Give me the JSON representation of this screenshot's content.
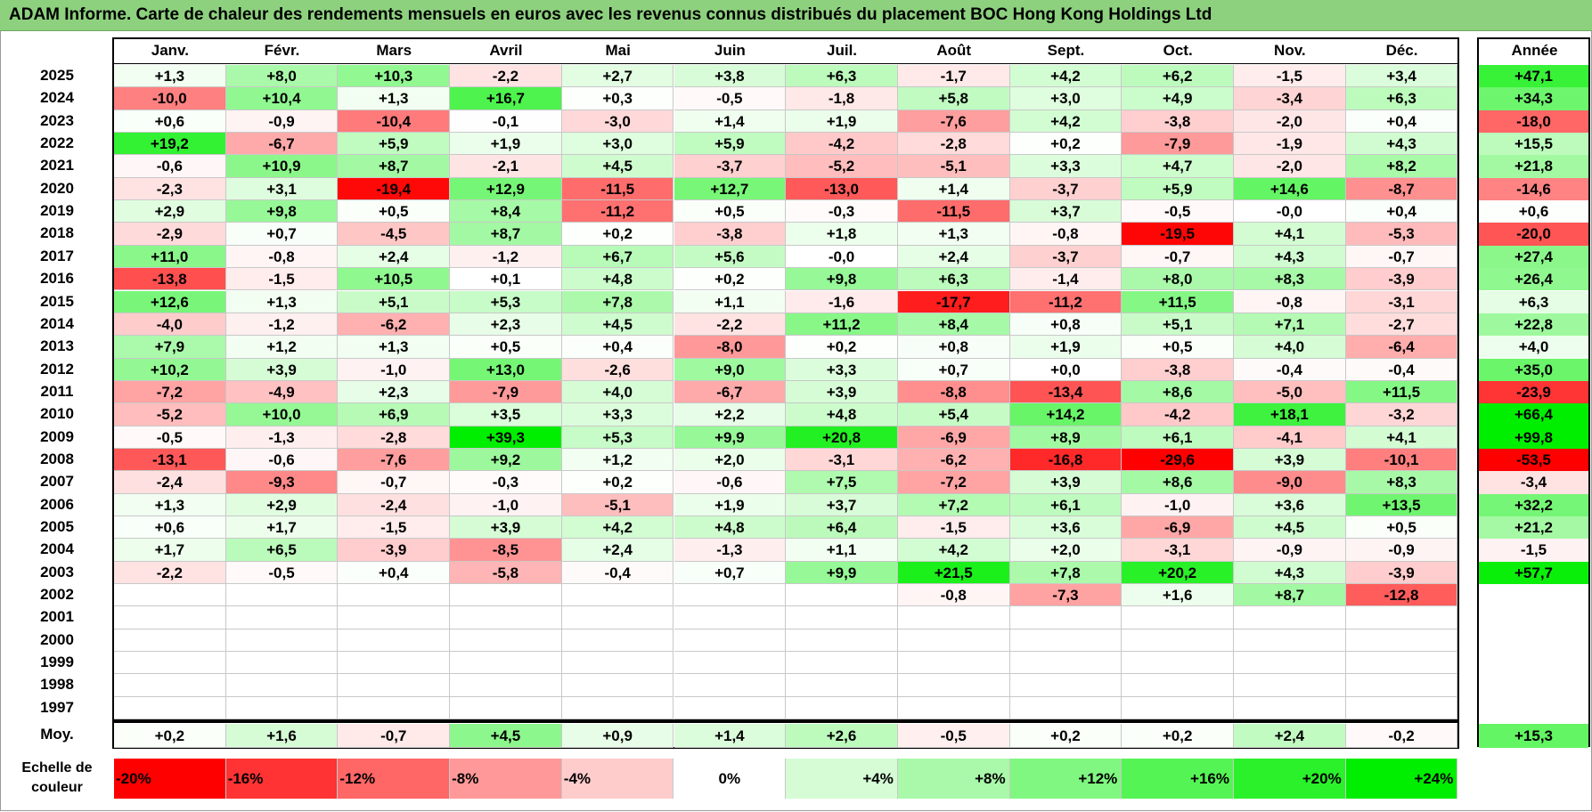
{
  "title": "ADAM Informe. Carte de chaleur des rendements mensuels en euros avec les revenus connus distribués du placement BOC Hong Kong Holdings Ltd",
  "colors": {
    "title_bar": "#8dd17e",
    "negative_max": "#ff0000",
    "positive_max": "#00ee00",
    "neutral": "#ffffff"
  },
  "chart_data": {
    "type": "heatmap",
    "title": "ADAM Informe. Carte de chaleur des rendements mensuels en euros avec les revenus connus distribués du placement BOC Hong Kong Holdings Ltd",
    "months": [
      "Janv.",
      "Févr.",
      "Mars",
      "Avril",
      "Mai",
      "Juin",
      "Juil.",
      "Août",
      "Sept.",
      "Oct.",
      "Nov.",
      "Déc."
    ],
    "year_header": "Année",
    "rows": [
      {
        "year": "2025",
        "values": [
          "+1,3",
          "+8,0",
          "+10,3",
          "-2,2",
          "+2,7",
          "+3,8",
          "+6,3",
          "-1,7",
          "+4,2",
          "+6,2",
          "-1,5",
          "+3,4"
        ],
        "annual": "+47,1"
      },
      {
        "year": "2024",
        "values": [
          "-10,0",
          "+10,4",
          "+1,3",
          "+16,7",
          "+0,3",
          "-0,5",
          "-1,8",
          "+5,8",
          "+3,0",
          "+4,9",
          "-3,4",
          "+6,3"
        ],
        "annual": "+34,3"
      },
      {
        "year": "2023",
        "values": [
          "+0,6",
          "-0,9",
          "-10,4",
          "-0,1",
          "-3,0",
          "+1,4",
          "+1,9",
          "-7,6",
          "+4,2",
          "-3,8",
          "-2,0",
          "+0,4"
        ],
        "annual": "-18,0"
      },
      {
        "year": "2022",
        "values": [
          "+19,2",
          "-6,7",
          "+5,9",
          "+1,9",
          "+3,0",
          "+5,9",
          "-4,2",
          "-2,8",
          "+0,2",
          "-7,9",
          "-1,9",
          "+4,3"
        ],
        "annual": "+15,5"
      },
      {
        "year": "2021",
        "values": [
          "-0,6",
          "+10,9",
          "+8,7",
          "-2,1",
          "+4,5",
          "-3,7",
          "-5,2",
          "-5,1",
          "+3,3",
          "+4,7",
          "-2,0",
          "+8,2"
        ],
        "annual": "+21,8"
      },
      {
        "year": "2020",
        "values": [
          "-2,3",
          "+3,1",
          "-19,4",
          "+12,9",
          "-11,5",
          "+12,7",
          "-13,0",
          "+1,4",
          "-3,7",
          "+5,9",
          "+14,6",
          "-8,7"
        ],
        "annual": "-14,6"
      },
      {
        "year": "2019",
        "values": [
          "+2,9",
          "+9,8",
          "+0,5",
          "+8,4",
          "-11,2",
          "+0,5",
          "-0,3",
          "-11,5",
          "+3,7",
          "-0,5",
          "-0,0",
          "+0,4"
        ],
        "annual": "+0,6"
      },
      {
        "year": "2018",
        "values": [
          "-2,9",
          "+0,7",
          "-4,5",
          "+8,7",
          "+0,2",
          "-3,8",
          "+1,8",
          "+1,3",
          "-0,8",
          "-19,5",
          "+4,1",
          "-5,3"
        ],
        "annual": "-20,0"
      },
      {
        "year": "2017",
        "values": [
          "+11,0",
          "-0,8",
          "+2,4",
          "-1,2",
          "+6,7",
          "+5,6",
          "-0,0",
          "+2,4",
          "-3,7",
          "-0,7",
          "+4,3",
          "-0,7"
        ],
        "annual": "+27,4"
      },
      {
        "year": "2016",
        "values": [
          "-13,8",
          "-1,5",
          "+10,5",
          "+0,1",
          "+4,8",
          "+0,2",
          "+9,8",
          "+6,3",
          "-1,4",
          "+8,0",
          "+8,3",
          "-3,9"
        ],
        "annual": "+26,4"
      },
      {
        "year": "2015",
        "values": [
          "+12,6",
          "+1,3",
          "+5,1",
          "+5,3",
          "+7,8",
          "+1,1",
          "-1,6",
          "-17,7",
          "-11,2",
          "+11,5",
          "-0,8",
          "-3,1"
        ],
        "annual": "+6,3"
      },
      {
        "year": "2014",
        "values": [
          "-4,0",
          "-1,2",
          "-6,2",
          "+2,3",
          "+4,5",
          "-2,2",
          "+11,2",
          "+8,4",
          "+0,8",
          "+5,1",
          "+7,1",
          "-2,7"
        ],
        "annual": "+22,8"
      },
      {
        "year": "2013",
        "values": [
          "+7,9",
          "+1,2",
          "+1,3",
          "+0,5",
          "+0,4",
          "-8,0",
          "+0,2",
          "+0,8",
          "+1,9",
          "+0,5",
          "+4,0",
          "-6,4"
        ],
        "annual": "+4,0"
      },
      {
        "year": "2012",
        "values": [
          "+10,2",
          "+3,9",
          "-1,0",
          "+13,0",
          "-2,6",
          "+9,0",
          "+3,3",
          "+0,7",
          "+0,0",
          "-3,8",
          "-0,4",
          "-0,4"
        ],
        "annual": "+35,0"
      },
      {
        "year": "2011",
        "values": [
          "-7,2",
          "-4,9",
          "+2,3",
          "-7,9",
          "+4,0",
          "-6,7",
          "+3,9",
          "-8,8",
          "-13,4",
          "+8,6",
          "-5,0",
          "+11,5"
        ],
        "annual": "-23,9"
      },
      {
        "year": "2010",
        "values": [
          "-5,2",
          "+10,0",
          "+6,9",
          "+3,5",
          "+3,3",
          "+2,2",
          "+4,8",
          "+5,4",
          "+14,2",
          "-4,2",
          "+18,1",
          "-3,2"
        ],
        "annual": "+66,4"
      },
      {
        "year": "2009",
        "values": [
          "-0,5",
          "-1,3",
          "-2,8",
          "+39,3",
          "+5,3",
          "+9,9",
          "+20,8",
          "-6,9",
          "+8,9",
          "+6,1",
          "-4,1",
          "+4,1"
        ],
        "annual": "+99,8"
      },
      {
        "year": "2008",
        "values": [
          "-13,1",
          "-0,6",
          "-7,6",
          "+9,2",
          "+1,2",
          "+2,0",
          "-3,1",
          "-6,2",
          "-16,8",
          "-29,6",
          "+3,9",
          "-10,1"
        ],
        "annual": "-53,5"
      },
      {
        "year": "2007",
        "values": [
          "-2,4",
          "-9,3",
          "-0,7",
          "-0,3",
          "+0,2",
          "-0,6",
          "+7,5",
          "-7,2",
          "+3,9",
          "+8,6",
          "-9,0",
          "+8,3"
        ],
        "annual": "-3,4"
      },
      {
        "year": "2006",
        "values": [
          "+1,3",
          "+2,9",
          "-2,4",
          "-1,0",
          "-5,1",
          "+1,9",
          "+3,7",
          "+7,2",
          "+6,1",
          "-1,0",
          "+3,6",
          "+13,5"
        ],
        "annual": "+32,2"
      },
      {
        "year": "2005",
        "values": [
          "+0,6",
          "+1,7",
          "-1,5",
          "+3,9",
          "+4,2",
          "+4,8",
          "+6,4",
          "-1,5",
          "+3,6",
          "-6,9",
          "+4,5",
          "+0,5"
        ],
        "annual": "+21,2"
      },
      {
        "year": "2004",
        "values": [
          "+1,7",
          "+6,5",
          "-3,9",
          "-8,5",
          "+2,4",
          "-1,3",
          "+1,1",
          "+4,2",
          "+2,0",
          "-3,1",
          "-0,9",
          "-0,9"
        ],
        "annual": "-1,5"
      },
      {
        "year": "2003",
        "values": [
          "-2,2",
          "-0,5",
          "+0,4",
          "-5,8",
          "-0,4",
          "+0,7",
          "+9,9",
          "+21,5",
          "+7,8",
          "+20,2",
          "+4,3",
          "-3,9"
        ],
        "annual": "+57,7"
      },
      {
        "year": "2002",
        "values": [
          "",
          "",
          "",
          "",
          "",
          "",
          "",
          "-0,8",
          "-7,3",
          "+1,6",
          "+8,7",
          "-12,8"
        ],
        "annual": ""
      },
      {
        "year": "2001",
        "values": [
          "",
          "",
          "",
          "",
          "",
          "",
          "",
          "",
          "",
          "",
          "",
          ""
        ],
        "annual": ""
      },
      {
        "year": "2000",
        "values": [
          "",
          "",
          "",
          "",
          "",
          "",
          "",
          "",
          "",
          "",
          "",
          ""
        ],
        "annual": ""
      },
      {
        "year": "1999",
        "values": [
          "",
          "",
          "",
          "",
          "",
          "",
          "",
          "",
          "",
          "",
          "",
          ""
        ],
        "annual": ""
      },
      {
        "year": "1998",
        "values": [
          "",
          "",
          "",
          "",
          "",
          "",
          "",
          "",
          "",
          "",
          "",
          ""
        ],
        "annual": ""
      },
      {
        "year": "1997",
        "values": [
          "",
          "",
          "",
          "",
          "",
          "",
          "",
          "",
          "",
          "",
          "",
          ""
        ],
        "annual": ""
      }
    ],
    "average": {
      "label": "Moy.",
      "values": [
        "+0,2",
        "+1,6",
        "-0,7",
        "+4,5",
        "+0,9",
        "+1,4",
        "+2,6",
        "-0,5",
        "+0,2",
        "+0,2",
        "+2,4",
        "-0,2"
      ],
      "annual": "+15,3"
    },
    "scale": {
      "label_line1": "Echelle de",
      "label_line2": "couleur",
      "steps": [
        "-20%",
        "-16%",
        "-12%",
        "-8%",
        "-4%",
        "0%",
        "+4%",
        "+8%",
        "+12%",
        "+16%",
        "+20%",
        "+24%"
      ],
      "step_values": [
        -20,
        -16,
        -12,
        -8,
        -4,
        0,
        4,
        8,
        12,
        16,
        20,
        24
      ]
    }
  }
}
